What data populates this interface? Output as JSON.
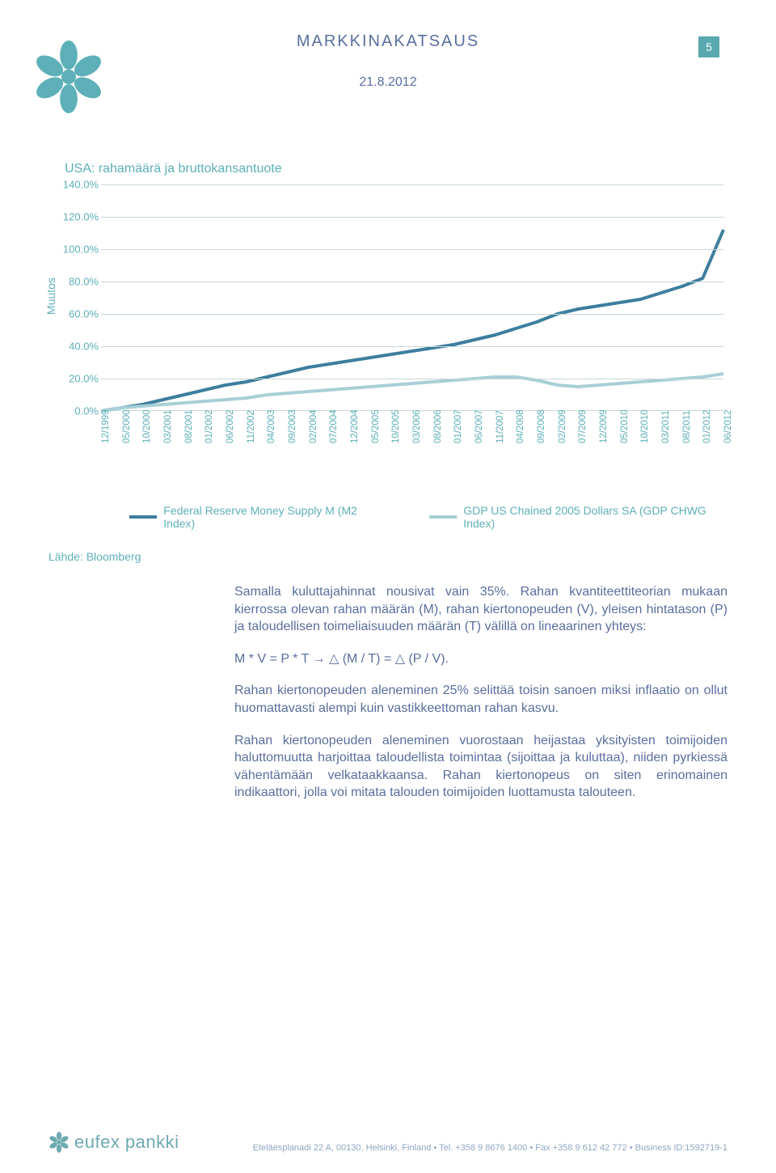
{
  "header": {
    "title": "MARKKINAKATSAUS",
    "page_number": "5",
    "date": "21.8.2012"
  },
  "chart": {
    "type": "line",
    "title": "USA: rahamäärä ja bruttokansantuote",
    "y_axis_label": "Muutos",
    "ylim": [
      0,
      140
    ],
    "ytick_step": 20,
    "y_ticks": [
      "0.0%",
      "20.0%",
      "40.0%",
      "60.0%",
      "80.0%",
      "100.0%",
      "120.0%",
      "140.0%"
    ],
    "x_labels": [
      "12/1999",
      "05/2000",
      "10/2000",
      "03/2001",
      "08/2001",
      "01/2002",
      "06/2002",
      "11/2002",
      "04/2003",
      "09/2003",
      "02/2004",
      "07/2004",
      "12/2004",
      "05/2005",
      "10/2005",
      "03/2006",
      "08/2006",
      "01/2007",
      "06/2007",
      "11/2007",
      "04/2008",
      "09/2008",
      "02/2009",
      "07/2009",
      "12/2009",
      "05/2010",
      "10/2010",
      "03/2011",
      "08/2011",
      "01/2012",
      "06/2012"
    ],
    "series": [
      {
        "name": "Federal Reserve Money Supply M (M2 Index)",
        "color": "#3d7e9e",
        "stroke_width": 4,
        "values": [
          0,
          2,
          4,
          7,
          10,
          13,
          16,
          18,
          21,
          24,
          27,
          29,
          31,
          33,
          35,
          37,
          39,
          41,
          44,
          47,
          51,
          55,
          60,
          63,
          65,
          67,
          69,
          73,
          77,
          82,
          112
        ]
      },
      {
        "name": "GDP US Chained 2005 Dollars SA (GDP CHWG Index)",
        "color": "#a7cfd5",
        "stroke_width": 4,
        "values": [
          0,
          2,
          3,
          4,
          5,
          6,
          7,
          8,
          10,
          11,
          12,
          13,
          14,
          15,
          16,
          17,
          18,
          19,
          20,
          21,
          21,
          19,
          16,
          15,
          16,
          17,
          18,
          19,
          20,
          21,
          23
        ]
      }
    ],
    "grid_color": "#c7d6d8",
    "background_color": "#ffffff"
  },
  "legend": {
    "items": [
      {
        "label": "Federal Reserve Money Supply M (M2 Index)",
        "color": "#3d7e9e"
      },
      {
        "label": "GDP US Chained 2005 Dollars SA (GDP CHWG Index)",
        "color": "#a7cfd5"
      }
    ]
  },
  "source": "Lähde: Bloomberg",
  "body": {
    "p1": "Samalla kuluttajahinnat nousivat vain 35%. Rahan kvantiteettiteorian mukaan kierrossa olevan rahan määrän (M), rahan kiertonopeuden (V), yleisen hintatason (P) ja taloudellisen toimeliaisuuden määrän (T) välillä on lineaarinen yhteys:",
    "p2": "M * V = P * T → △ (M / T) = △ (P / V).",
    "p3": "Rahan kiertonopeuden aleneminen 25% selittää toisin sanoen miksi inflaatio on ollut huomattavasti alempi kuin vastikkeettoman rahan kasvu.",
    "p4": "Rahan kiertonopeuden aleneminen vuorostaan heijastaa yksityisten toimijoiden haluttomuutta harjoittaa taloudellista toimintaa (sijoittaa ja kuluttaa), niiden pyrkiessä vähentämään velkataakkaansa. Rahan kiertonopeus on siten erinomainen indikaattori, jolla voi mitata talouden toimijoiden luottamusta talouteen."
  },
  "footer": {
    "brand": "eufex pankki",
    "info": "Eteläesplanadi 22 A, 00130, Helsinki, Finland • Tel. +358 9 8676 1400 • Fax +358 9 612 42 772 • Business ID:1592719-1"
  },
  "colors": {
    "header_text": "#5a6e9e",
    "accent": "#5db0b8",
    "page_badge": "#5aa8b0",
    "body_text": "#5a6e9e",
    "footer_text": "#8fa7c2"
  }
}
